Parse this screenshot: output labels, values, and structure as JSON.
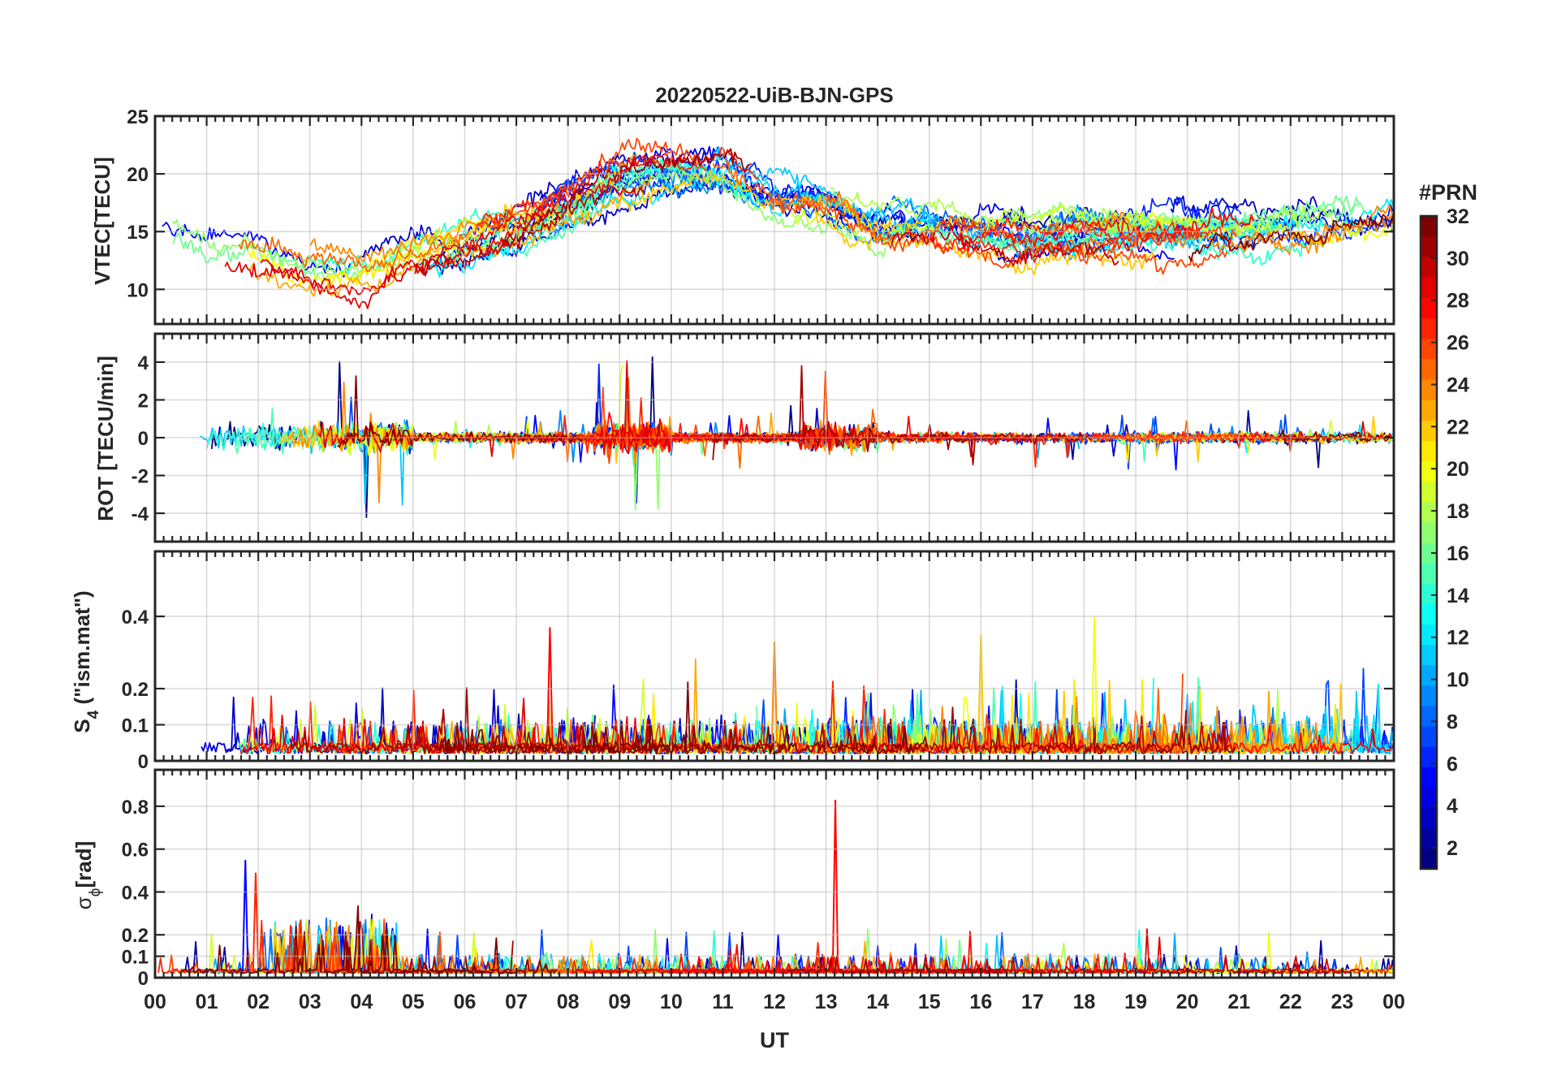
{
  "title": "20220522-UiB-BJN-GPS",
  "chart_data": {
    "type": "line",
    "title": "20220522-UiB-BJN-GPS",
    "x_label": "UT",
    "x_tick_labels": [
      "00",
      "01",
      "02",
      "03",
      "04",
      "05",
      "06",
      "07",
      "08",
      "09",
      "10",
      "11",
      "12",
      "13",
      "14",
      "15",
      "16",
      "17",
      "18",
      "19",
      "20",
      "21",
      "22",
      "23",
      "00"
    ],
    "x_range_hours": [
      0,
      24
    ],
    "colorbar": {
      "label": "#PRN",
      "range": [
        1,
        32
      ],
      "tick_labels": [
        "2",
        "4",
        "6",
        "8",
        "10",
        "12",
        "14",
        "16",
        "18",
        "20",
        "22",
        "24",
        "26",
        "28",
        "30",
        "32"
      ],
      "colormap": "jet"
    },
    "panels": [
      {
        "key": "vtec",
        "ylabel": "VTEC[TECU]",
        "ylim": [
          7,
          25
        ],
        "yticks": [
          10,
          15,
          20,
          25
        ],
        "ytick_labels": [
          "10",
          "15",
          "20",
          "25"
        ],
        "series_note": "32 PRN traces, noisy around 10-23 TECU",
        "approx_envelope": [
          [
            0,
            14.5
          ],
          [
            2,
            13
          ],
          [
            3,
            11.5
          ],
          [
            4,
            11
          ],
          [
            5,
            13
          ],
          [
            6,
            14
          ],
          [
            7,
            15
          ],
          [
            8,
            17
          ],
          [
            9,
            19
          ],
          [
            10,
            20
          ],
          [
            11,
            20
          ],
          [
            12,
            18
          ],
          [
            13,
            17.5
          ],
          [
            14,
            15.5
          ],
          [
            15,
            15.5
          ],
          [
            16,
            15
          ],
          [
            17,
            14.5
          ],
          [
            18,
            15
          ],
          [
            19,
            15
          ],
          [
            20,
            15
          ],
          [
            21,
            15
          ],
          [
            22,
            15
          ],
          [
            23,
            15.5
          ],
          [
            24,
            16
          ]
        ]
      },
      {
        "key": "rot",
        "ylabel": "ROT [TECU/min]",
        "ylim": [
          -5.5,
          5.5
        ],
        "yticks": [
          -4,
          -2,
          0,
          2,
          4
        ],
        "ytick_labels": [
          "-4",
          "-2",
          "0",
          "2",
          "4"
        ],
        "series_note": "32 PRN traces centered on 0 with spikes up to about +/-4.5"
      },
      {
        "key": "s4",
        "ylabel_main": "S",
        "ylabel_sub": "4",
        "ylabel_rest": " (\"ism.mat\")",
        "ylim": [
          0,
          0.58
        ],
        "yticks": [
          0,
          0.1,
          0.2,
          0.4
        ],
        "ytick_labels": [
          "0",
          "0.1",
          "0.2",
          "0.4"
        ],
        "series_note": "32 PRN traces, baseline about 0.03-0.08, peaks to about 0.4"
      },
      {
        "key": "sigma",
        "ylabel_main": "σ",
        "ylabel_sub": "ϕ",
        "ylabel_rest": "[rad]",
        "ylim": [
          0,
          0.97
        ],
        "yticks": [
          0,
          0.1,
          0.2,
          0.4,
          0.6,
          0.8
        ],
        "ytick_labels": [
          "0",
          "0.1",
          "0.2",
          "0.4",
          "0.6",
          "0.8"
        ],
        "series_note": "32 PRN traces, baseline about 0.03, spikes to about 0.83 near 13.2 UT"
      }
    ]
  }
}
